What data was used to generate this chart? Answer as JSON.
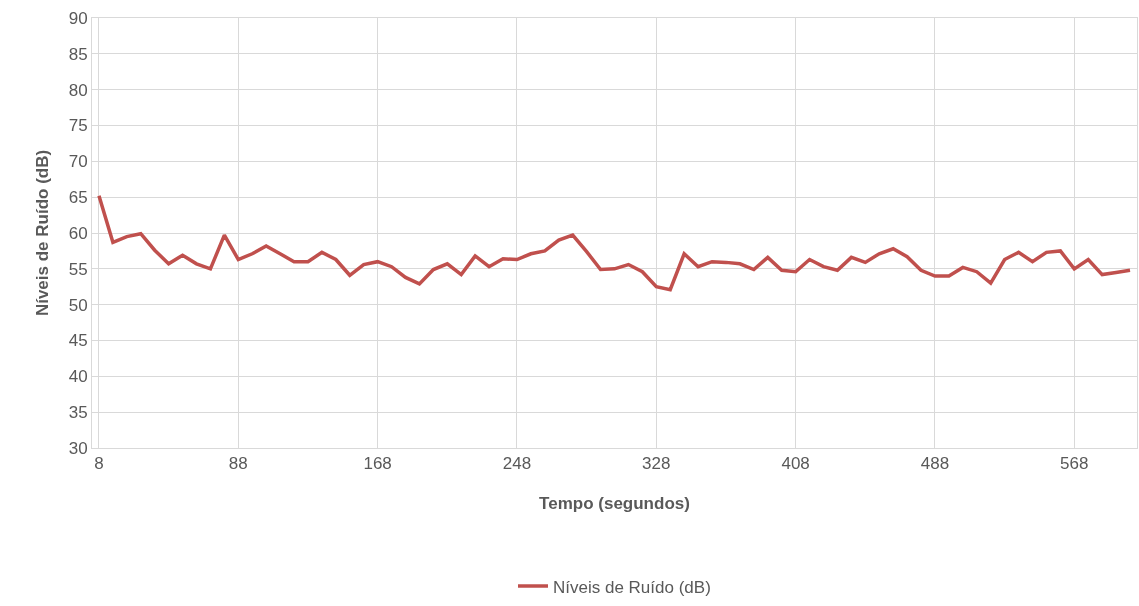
{
  "chart_data": {
    "type": "line",
    "xlabel": "Tempo (segundos)",
    "ylabel": "Níveis de Ruído (dB)",
    "x": [
      8,
      16,
      24,
      32,
      40,
      48,
      56,
      64,
      72,
      80,
      88,
      96,
      104,
      112,
      120,
      128,
      136,
      144,
      152,
      160,
      168,
      176,
      184,
      192,
      200,
      208,
      216,
      224,
      232,
      240,
      248,
      256,
      264,
      272,
      280,
      288,
      296,
      304,
      312,
      320,
      328,
      336,
      344,
      352,
      360,
      368,
      376,
      384,
      392,
      400,
      408,
      416,
      424,
      432,
      440,
      448,
      456,
      464,
      472,
      480,
      488,
      496,
      504,
      512,
      520,
      528,
      536,
      544,
      552,
      560,
      568,
      576,
      584,
      592,
      600
    ],
    "series": [
      {
        "name": "Níveis de Ruído (dB)",
        "color": "#c0504d",
        "values": [
          65.2,
          58.7,
          59.5,
          59.9,
          57.6,
          55.7,
          56.9,
          55.7,
          55.0,
          59.7,
          56.3,
          57.1,
          58.2,
          57.1,
          56.0,
          56.0,
          57.3,
          56.3,
          54.1,
          55.6,
          56.0,
          55.3,
          53.8,
          52.9,
          54.9,
          55.7,
          54.2,
          56.8,
          55.3,
          56.4,
          56.3,
          57.1,
          57.5,
          59.0,
          59.7,
          57.4,
          54.9,
          55.0,
          55.6,
          54.6,
          52.5,
          52.1,
          57.1,
          55.3,
          56.0,
          55.9,
          55.7,
          54.9,
          56.6,
          54.8,
          54.6,
          56.3,
          55.3,
          54.8,
          56.6,
          55.9,
          57.1,
          57.8,
          56.7,
          54.8,
          54.0,
          54.0,
          55.2,
          54.6,
          53.0,
          56.3,
          57.3,
          56.0,
          57.3,
          57.5,
          55.0,
          56.3,
          54.2,
          54.5,
          54.8
        ]
      }
    ],
    "xlim": [
      4,
      604
    ],
    "xticks": [
      8,
      88,
      168,
      248,
      328,
      408,
      488,
      568
    ],
    "ylim": [
      30,
      90
    ],
    "yticks": [
      30,
      35,
      40,
      45,
      50,
      55,
      60,
      65,
      70,
      75,
      80,
      85,
      90
    ],
    "grid": true,
    "legend": "bottom",
    "marker": "none",
    "line_style": "solid"
  }
}
